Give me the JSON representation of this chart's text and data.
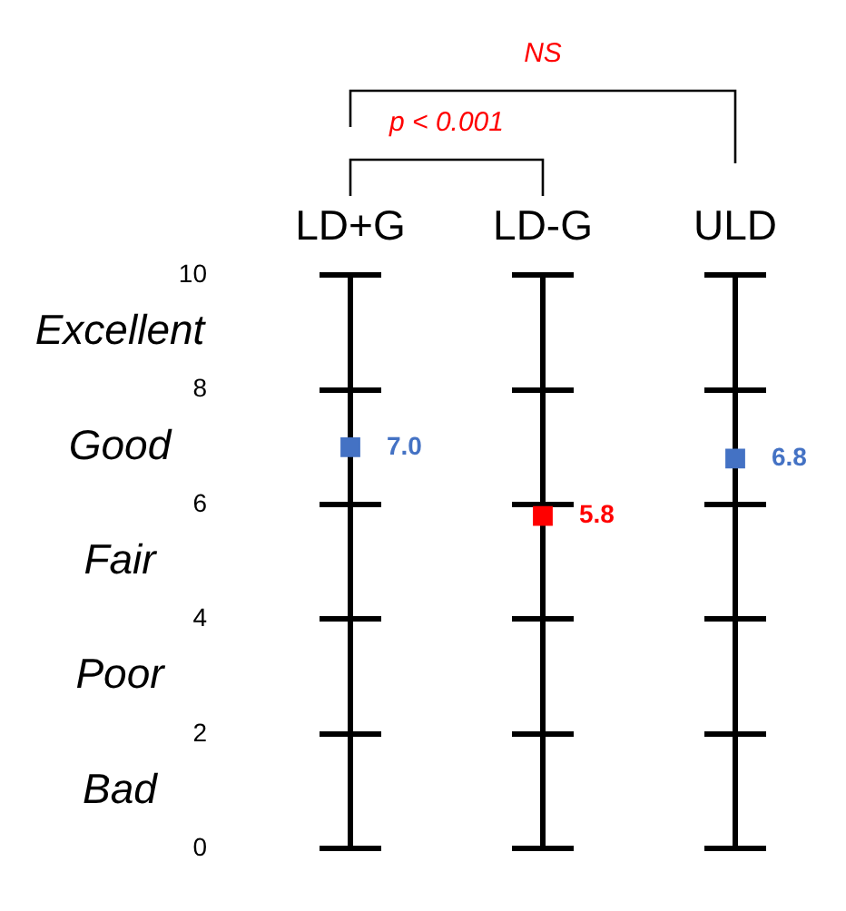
{
  "chart_data": {
    "type": "scatter",
    "categories": [
      "LD+G",
      "LD-G",
      "ULD"
    ],
    "values": [
      7.0,
      5.8,
      6.8
    ],
    "colors": [
      "#4472c4",
      "#ff0000",
      "#4472c4"
    ],
    "value_labels": [
      "7.0",
      "5.8",
      "6.8"
    ],
    "marker": "square",
    "ylim": [
      0,
      10
    ],
    "yticks": [
      0,
      2,
      4,
      6,
      8,
      10
    ],
    "grid": true,
    "annotations": [
      "p < 0.001",
      "NS",
      "Excellent",
      "Good",
      "Fair",
      "Poor",
      "Bad"
    ]
  }
}
